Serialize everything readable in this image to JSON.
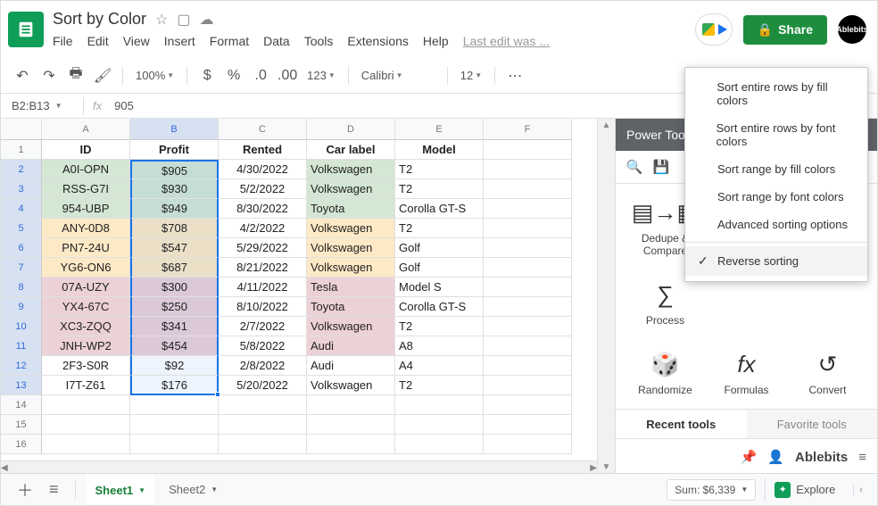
{
  "app": {
    "doc_title": "Sort by Color",
    "menu": [
      "File",
      "Edit",
      "View",
      "Insert",
      "Format",
      "Data",
      "Tools",
      "Extensions",
      "Help"
    ],
    "last_edit": "Last edit was ...",
    "share_label": "Share",
    "account": "Ablebits"
  },
  "toolbar": {
    "zoom": "100%",
    "number_format": "123",
    "font": "Calibri",
    "font_size": "12"
  },
  "formula": {
    "name_box": "B2:B13",
    "fx": "fx",
    "value": "905"
  },
  "columns": [
    "A",
    "B",
    "C",
    "D",
    "E",
    "F"
  ],
  "selected_col_index": 1,
  "visible_row_numbers": [
    1,
    2,
    3,
    4,
    5,
    6,
    7,
    8,
    9,
    10,
    11,
    12,
    13,
    14,
    15,
    16
  ],
  "selection": {
    "col": 1,
    "row_start": 2,
    "row_end": 13
  },
  "grid": {
    "headers": [
      "ID",
      "Profit",
      "Rented",
      "Car label",
      "Model"
    ],
    "rows": [
      {
        "fill": "#d4e6d4",
        "cells": [
          "A0I-OPN",
          "$905",
          "4/30/2022",
          "Volkswagen",
          "T2"
        ],
        "model_fill": ""
      },
      {
        "fill": "#d4e6d4",
        "cells": [
          "RSS-G7I",
          "$930",
          "5/2/2022",
          "Volkswagen",
          "T2"
        ],
        "model_fill": ""
      },
      {
        "fill": "#d4e6d4",
        "cells": [
          "954-UBP",
          "$949",
          "8/30/2022",
          "Toyota",
          "Corolla GT-S"
        ],
        "model_fill": ""
      },
      {
        "fill": "#fde9c6",
        "cells": [
          "ANY-0D8",
          "$708",
          "4/2/2022",
          "Volkswagen",
          "T2"
        ],
        "model_fill": ""
      },
      {
        "fill": "#fde9c6",
        "cells": [
          "PN7-24U",
          "$547",
          "5/29/2022",
          "Volkswagen",
          "Golf"
        ],
        "model_fill": ""
      },
      {
        "fill": "#fde9c6",
        "cells": [
          "YG6-ON6",
          "$687",
          "8/21/2022",
          "Volkswagen",
          "Golf"
        ],
        "model_fill": ""
      },
      {
        "fill": "#ecd1d7",
        "cells": [
          "07A-UZY",
          "$300",
          "4/11/2022",
          "Tesla",
          "Model S"
        ],
        "model_fill": ""
      },
      {
        "fill": "#ecd1d7",
        "cells": [
          "YX4-67C",
          "$250",
          "8/10/2022",
          "Toyota",
          "Corolla GT-S"
        ],
        "model_fill": ""
      },
      {
        "fill": "#ecd1d7",
        "cells": [
          "XC3-ZQQ",
          "$341",
          "2/7/2022",
          "Volkswagen",
          "T2"
        ],
        "model_fill": ""
      },
      {
        "fill": "#ecd1d7",
        "cells": [
          "JNH-WP2",
          "$454",
          "5/8/2022",
          "Audi",
          "A8"
        ],
        "model_fill": ""
      },
      {
        "fill": "#ffffff",
        "cells": [
          "2F3-S0R",
          "$92",
          "2/8/2022",
          "Audi",
          "A4"
        ],
        "model_fill": ""
      },
      {
        "fill": "#ffffff",
        "cells": [
          "I7T-Z61",
          "$176",
          "5/20/2022",
          "Volkswagen",
          "T2"
        ],
        "model_fill": ""
      }
    ],
    "align": [
      "center",
      "center",
      "center",
      "left",
      "left"
    ],
    "car_label_fill": {
      "Volkswagen": "",
      "Toyota": "",
      "Tesla": "",
      "Audi": ""
    },
    "selection_tint": "#e9f0fb",
    "selection_border": "#1a73e8"
  },
  "sidebar": {
    "title": "Power Tools",
    "tools": [
      {
        "label": "Dedupe & Compare"
      },
      {
        "label": "Process"
      },
      {
        "label": "Randomize"
      },
      {
        "label": "Formulas"
      },
      {
        "label": "Convert"
      }
    ],
    "dropdown": [
      "Sort entire rows by fill colors",
      "Sort entire rows by font colors",
      "Sort range by fill colors",
      "Sort range by font colors",
      "Advanced sorting options"
    ],
    "dropdown_hover": "Reverse sorting",
    "tabs": {
      "active": "Recent tools",
      "inactive": "Favorite tools"
    },
    "brand": "Ablebits"
  },
  "bottom": {
    "sheets": [
      {
        "name": "Sheet1",
        "active": true
      },
      {
        "name": "Sheet2",
        "active": false
      }
    ],
    "sum": "Sum: $6,339",
    "explore": "Explore"
  }
}
